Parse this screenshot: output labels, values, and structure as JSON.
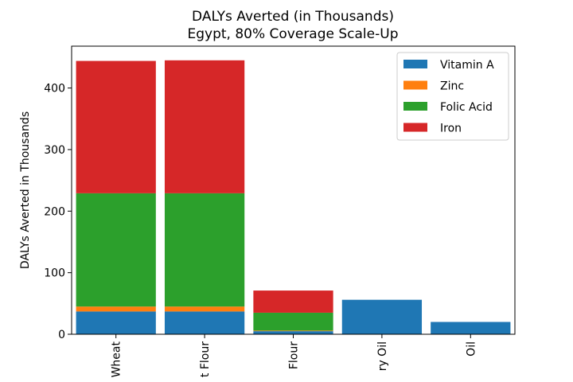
{
  "chart_data": {
    "type": "bar",
    "stacked": true,
    "title": "DALYs Averted (in Thousands)",
    "subtitle": "Egypt, 80% Coverage Scale-Up",
    "ylabel": "DALYs Averted in Thousands",
    "xlabel": "",
    "ylim": [
      0,
      468
    ],
    "yticks": [
      0,
      100,
      200,
      300,
      400
    ],
    "categories": [
      "Wheat",
      "t Flour",
      "Flour",
      "ry Oil",
      "Oil"
    ],
    "series": [
      {
        "name": "Vitamin A",
        "color": "#1f77b4",
        "values": [
          37,
          37,
          5,
          56,
          20
        ]
      },
      {
        "name": "Zinc",
        "color": "#ff7f0e",
        "values": [
          8,
          8,
          1,
          0,
          0
        ]
      },
      {
        "name": "Folic Acid",
        "color": "#2ca02c",
        "values": [
          184,
          184,
          29,
          0,
          0
        ]
      },
      {
        "name": "Iron",
        "color": "#d62728",
        "values": [
          215,
          216,
          36,
          0,
          0
        ]
      }
    ],
    "legend_position": "top-right",
    "grid": false
  }
}
